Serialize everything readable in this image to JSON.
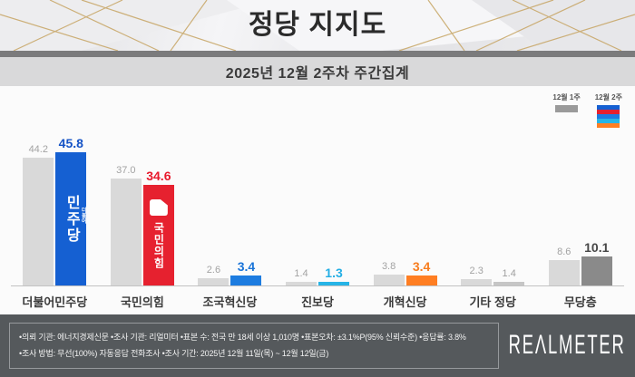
{
  "header": {
    "title": "정당 지지도",
    "subtitle": "2025년 12월 2주차 주간집계"
  },
  "legend": {
    "prev_label": "12월 1주",
    "cur_label": "12월 2주",
    "prev_color": "#9a9a9a",
    "cur_stack_colors": [
      "#1560d2",
      "#e6212f",
      "#1d7ce0",
      "#26b4e6",
      "#ff7e22"
    ]
  },
  "chart_data": {
    "type": "bar",
    "title": "정당 지지도",
    "subtitle": "2025년 12월 2주차 주간집계",
    "unit": "%",
    "ylim": [
      0,
      50
    ],
    "grid": false,
    "legend_position": "top-right",
    "categories": [
      "더불어민주당",
      "국민의힘",
      "조국혁신당",
      "진보당",
      "개혁신당",
      "기타 정당",
      "무당층"
    ],
    "series": [
      {
        "name": "12월 1주",
        "values": [
          44.2,
          37.0,
          2.6,
          1.4,
          3.8,
          2.3,
          8.6
        ]
      },
      {
        "name": "12월 2주",
        "values": [
          45.8,
          34.6,
          3.4,
          1.3,
          3.4,
          1.4,
          10.1
        ]
      }
    ],
    "groups": [
      {
        "label": "더불어민주당",
        "prev": 44.2,
        "cur": 45.8,
        "prev_label": "44.2",
        "cur_label": "45.8",
        "prev_color": "#d9d9d9",
        "cur_color": "#1560d2",
        "cur_label_color": "#1553c6"
      },
      {
        "label": "국민의힘",
        "prev": 37.0,
        "cur": 34.6,
        "prev_label": "37.0",
        "cur_label": "34.6",
        "prev_color": "#d9d9d9",
        "cur_color": "#e6212f",
        "cur_label_color": "#e8192c"
      },
      {
        "label": "조국혁신당",
        "prev": 2.6,
        "cur": 3.4,
        "prev_label": "2.6",
        "cur_label": "3.4",
        "prev_color": "#d9d9d9",
        "cur_color": "#1d7ce0",
        "cur_label_color": "#1a74d8"
      },
      {
        "label": "진보당",
        "prev": 1.4,
        "cur": 1.3,
        "prev_label": "1.4",
        "cur_label": "1.3",
        "prev_color": "#d9d9d9",
        "cur_color": "#26b4e6",
        "cur_label_color": "#23aee4"
      },
      {
        "label": "개혁신당",
        "prev": 3.8,
        "cur": 3.4,
        "prev_label": "3.8",
        "cur_label": "3.4",
        "prev_color": "#d9d9d9",
        "cur_color": "#ff7e22",
        "cur_label_color": "#f87d1e"
      },
      {
        "label": "기타 정당",
        "prev": 2.3,
        "cur": 1.4,
        "prev_label": "2.3",
        "cur_label": "1.4",
        "prev_color": "#d9d9d9",
        "cur_color": "#c6c6c6",
        "cur_label_color": "#9e9e9e"
      },
      {
        "label": "무당층",
        "prev": 8.6,
        "cur": 10.1,
        "prev_label": "8.6",
        "cur_label": "10.1",
        "prev_color": "#d9d9d9",
        "cur_color": "#8a8a8a",
        "cur_label_color": "#474747"
      }
    ]
  },
  "party_logos": {
    "minjoo_small": "더불어",
    "minjoo_big": "민주당",
    "ppp_text": "국민의힘"
  },
  "footer": {
    "line1": "•의뢰 기관: 에너지경제신문  •조사 기관: 리얼미터 •표본 수: 전국 만 18세 이상 1,010명 •표본오차: ±3.1%P(95% 신뢰수준) •응답률: 3.8%",
    "line2": "•조사 방법: 무선(100%) 자동응답 전화조사 •조사 기간: 2025년 12월 11일(목) ~ 12월 12일(금)",
    "brand": "REΛLMETER"
  }
}
